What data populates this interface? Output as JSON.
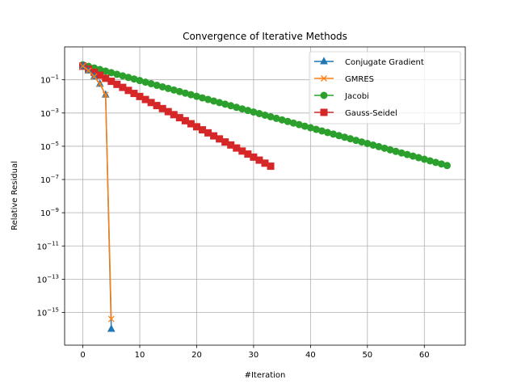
{
  "chart_data": {
    "type": "line",
    "title": "Convergence of Iterative Methods",
    "xlabel": "#Iteration",
    "ylabel": "Relative Residual",
    "xlim": [
      -3.2,
      67.2
    ],
    "ylim_log10": [
      -16.97,
      0.98
    ],
    "yscale": "log",
    "grid": true,
    "legend_position": "upper right",
    "x_ticks": [
      0,
      10,
      20,
      30,
      40,
      50,
      60
    ],
    "y_ticks_exponents": [
      -15,
      -13,
      -11,
      -9,
      -7,
      -5,
      -3,
      -1
    ],
    "series": [
      {
        "name": "Conjugate Gradient",
        "color": "#1f77b4",
        "marker": "triangle",
        "x": [
          0,
          1,
          2,
          3,
          4,
          5
        ],
        "log10_y": [
          -0.18,
          -0.45,
          -0.8,
          -1.25,
          -1.9,
          -16.0
        ]
      },
      {
        "name": "GMRES",
        "color": "#ff7f0e",
        "marker": "x",
        "x": [
          0,
          1,
          2,
          3,
          4,
          5
        ],
        "log10_y": [
          -0.18,
          -0.45,
          -0.8,
          -1.25,
          -1.9,
          -15.4
        ]
      },
      {
        "name": "Jacobi",
        "color": "#2ca02c",
        "marker": "circle",
        "x_start": 0,
        "x_end": 64,
        "log10_y_start": -0.1,
        "log10_y_end": -6.16
      },
      {
        "name": "Gauss-Seidel",
        "color": "#d62728",
        "marker": "square",
        "x_start": 0,
        "x_end": 33,
        "log10_y_start": -0.18,
        "log10_y_end": -6.2
      }
    ]
  }
}
